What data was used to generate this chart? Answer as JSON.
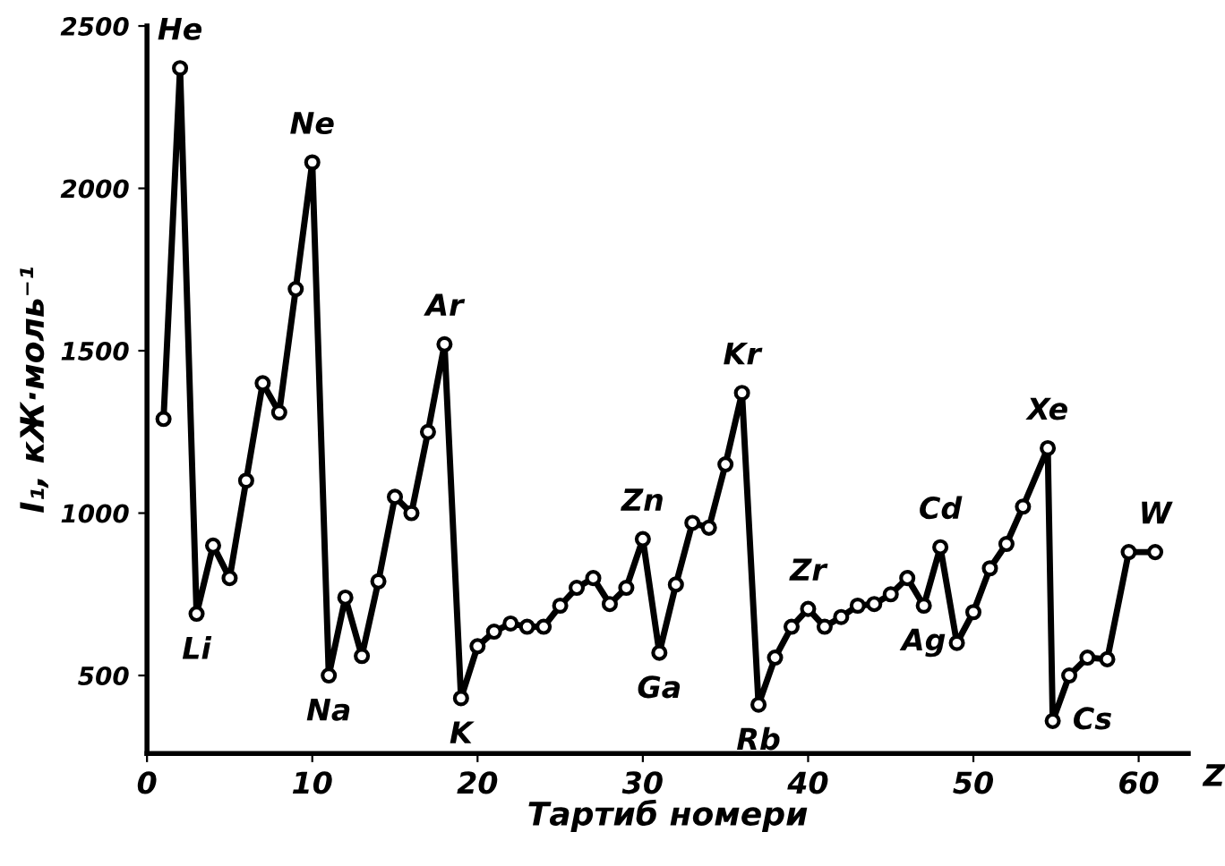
{
  "chart_data": {
    "type": "line",
    "xlabel": "Тартиб номери",
    "ylabel": "I₁, кЖ·моль⁻¹",
    "series": [
      {
        "color": "#000000",
        "x": [
          1,
          2,
          3,
          4,
          5,
          6,
          7,
          8,
          9,
          10,
          11,
          12,
          13,
          14,
          15,
          16,
          17,
          18,
          19,
          20,
          21,
          22,
          23,
          24,
          25,
          26,
          27,
          28,
          29,
          30,
          31,
          32,
          33,
          34,
          35,
          36,
          37,
          38,
          39,
          40,
          41,
          42,
          43,
          44,
          45,
          46,
          47,
          48,
          49,
          50,
          51,
          52,
          53,
          54.5,
          54.8,
          55.8,
          56.9,
          58.1,
          59.4,
          61
        ],
        "values": [
          1290,
          2370,
          690,
          900,
          800,
          1100,
          1400,
          1310,
          1690,
          2080,
          500,
          740,
          560,
          790,
          1050,
          1000,
          1250,
          1520,
          430,
          590,
          635,
          660,
          650,
          650,
          715,
          770,
          800,
          720,
          770,
          920,
          570,
          780,
          970,
          955,
          1150,
          1370,
          410,
          555,
          650,
          705,
          650,
          680,
          715,
          720,
          750,
          800,
          715,
          895,
          600,
          695,
          830,
          905,
          1020,
          1200,
          360,
          500,
          555,
          550,
          880,
          880
        ]
      }
    ],
    "annotations": [
      {
        "text": "He",
        "x": 2,
        "y": 2370
      },
      {
        "text": "Li",
        "x": 3,
        "y": 690
      },
      {
        "text": "Ne",
        "x": 10,
        "y": 2080
      },
      {
        "text": "Na",
        "x": 11,
        "y": 500
      },
      {
        "text": "Ar",
        "x": 18,
        "y": 1520
      },
      {
        "text": "K",
        "x": 19,
        "y": 430
      },
      {
        "text": "Zn",
        "x": 30,
        "y": 920
      },
      {
        "text": "Ga",
        "x": 31,
        "y": 570
      },
      {
        "text": "Kr",
        "x": 36,
        "y": 1370
      },
      {
        "text": "Rb",
        "x": 37,
        "y": 410
      },
      {
        "text": "Zr",
        "x": 40,
        "y": 705
      },
      {
        "text": "Ag",
        "x": 47,
        "y": 715
      },
      {
        "text": "Cd",
        "x": 48,
        "y": 895
      },
      {
        "text": "Xe",
        "x": 54.5,
        "y": 1200
      },
      {
        "text": "Cs",
        "x": 54.8,
        "y": 360
      },
      {
        "text": "W",
        "x": 61,
        "y": 880
      },
      "Z"
    ],
    "xlim": [
      0,
      63
    ],
    "xticks": [
      0,
      10,
      20,
      30,
      40,
      50,
      60
    ],
    "ylim": [
      260,
      2500
    ],
    "yticks": [
      500,
      1000,
      1500,
      2000,
      2500
    ],
    "marker": "circle",
    "line_style": "solid",
    "grid": false
  }
}
